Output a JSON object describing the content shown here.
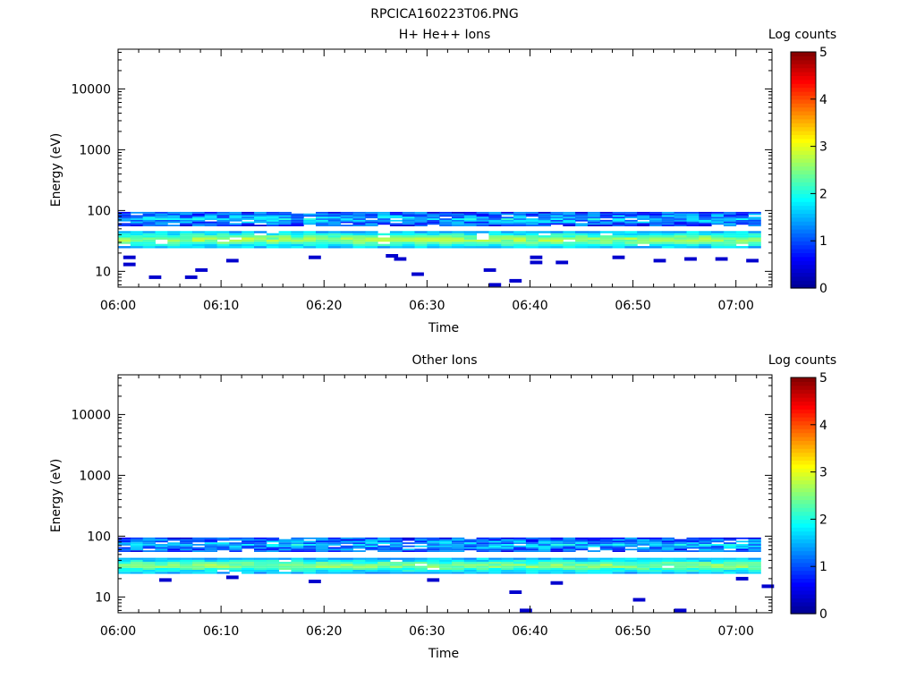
{
  "figure_title": "RPCICA160223T06.PNG",
  "colors": {
    "colormap": [
      "#00008f",
      "#0000ff",
      "#0080ff",
      "#00ffff",
      "#80ff80",
      "#ffff00",
      "#ff8000",
      "#ff0000",
      "#800000"
    ]
  },
  "chart_data": [
    {
      "type": "heatmap",
      "title": "H+ He++ Ions",
      "xlabel": "Time",
      "ylabel": "Energy (eV)",
      "x_ticks": [
        "06:00",
        "06:10",
        "06:20",
        "06:30",
        "06:40",
        "06:50",
        "07:00"
      ],
      "x_tick_minutes": [
        0,
        10,
        20,
        30,
        40,
        50,
        60
      ],
      "xlim_minutes": [
        0,
        63.5
      ],
      "y_scale": "log",
      "ylim": [
        5.5,
        45000
      ],
      "y_ticks": [
        "10",
        "100",
        "1000",
        "10000"
      ],
      "y_tick_values": [
        10,
        100,
        1000,
        10000
      ],
      "colorbar": {
        "label": "Log counts",
        "ticks": [
          "0",
          "1",
          "2",
          "3",
          "4",
          "5"
        ],
        "range": [
          0,
          5
        ]
      },
      "bands": [
        {
          "energy_low": 24,
          "energy_high": 46,
          "log_counts_typical": 2.6,
          "description_from_image": ""
        },
        {
          "energy_low": 55,
          "energy_high": 95,
          "log_counts_typical": 1.2
        }
      ],
      "sparse_points": [
        {
          "minute": 0.5,
          "energy": 13
        },
        {
          "minute": 0.5,
          "energy": 17
        },
        {
          "minute": 3,
          "energy": 8
        },
        {
          "minute": 6.5,
          "energy": 8
        },
        {
          "minute": 7.5,
          "energy": 10.5
        },
        {
          "minute": 10.5,
          "energy": 15
        },
        {
          "minute": 18.5,
          "energy": 17
        },
        {
          "minute": 26,
          "energy": 18
        },
        {
          "minute": 26.8,
          "energy": 16
        },
        {
          "minute": 28.5,
          "energy": 9
        },
        {
          "minute": 35.5,
          "energy": 10.5
        },
        {
          "minute": 36,
          "energy": 6
        },
        {
          "minute": 38,
          "energy": 7
        },
        {
          "minute": 40,
          "energy": 14
        },
        {
          "minute": 40,
          "energy": 17
        },
        {
          "minute": 42.5,
          "energy": 14
        },
        {
          "minute": 48,
          "energy": 17
        },
        {
          "minute": 52,
          "energy": 15
        },
        {
          "minute": 55,
          "energy": 16
        },
        {
          "minute": 58,
          "energy": 16
        },
        {
          "minute": 61,
          "energy": 15
        }
      ]
    },
    {
      "type": "heatmap",
      "title": "Other Ions",
      "xlabel": "Time",
      "ylabel": "Energy (eV)",
      "x_ticks": [
        "06:00",
        "06:10",
        "06:20",
        "06:30",
        "06:40",
        "06:50",
        "07:00"
      ],
      "x_tick_minutes": [
        0,
        10,
        20,
        30,
        40,
        50,
        60
      ],
      "xlim_minutes": [
        0,
        63.5
      ],
      "y_scale": "log",
      "ylim": [
        5.5,
        45000
      ],
      "y_ticks": [
        "10",
        "100",
        "1000",
        "10000"
      ],
      "y_tick_values": [
        10,
        100,
        1000,
        10000
      ],
      "colorbar": {
        "label": "Log counts",
        "ticks": [
          "0",
          "1",
          "2",
          "3",
          "4",
          "5"
        ],
        "range": [
          0,
          5
        ]
      },
      "bands": [
        {
          "energy_low": 24,
          "energy_high": 44,
          "log_counts_typical": 2.5
        },
        {
          "energy_low": 55,
          "energy_high": 95,
          "log_counts_typical": 1.2
        }
      ],
      "sparse_points": [
        {
          "minute": 4,
          "energy": 19
        },
        {
          "minute": 10.5,
          "energy": 21
        },
        {
          "minute": 18.5,
          "energy": 18
        },
        {
          "minute": 30,
          "energy": 19
        },
        {
          "minute": 38,
          "energy": 12
        },
        {
          "minute": 39,
          "energy": 6
        },
        {
          "minute": 42,
          "energy": 17
        },
        {
          "minute": 50,
          "energy": 9
        },
        {
          "minute": 54,
          "energy": 6
        },
        {
          "minute": 60,
          "energy": 20
        },
        {
          "minute": 62.5,
          "energy": 15
        }
      ]
    }
  ]
}
